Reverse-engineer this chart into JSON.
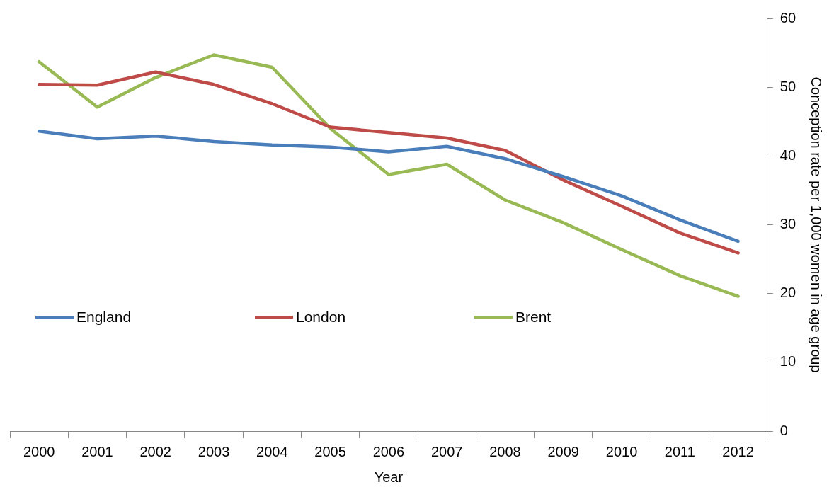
{
  "chart_data": {
    "type": "line",
    "xlabel": "Year",
    "y2label": "Conception rate per 1,000 women in age group",
    "categories": [
      "2000",
      "2001",
      "2002",
      "2003",
      "2004",
      "2005",
      "2006",
      "2007",
      "2008",
      "2009",
      "2010",
      "2011",
      "2012"
    ],
    "series": [
      {
        "name": "England",
        "color": "#4a7ebb",
        "axis": "y2",
        "values": [
          43.6,
          42.5,
          42.9,
          42.1,
          41.6,
          41.3,
          40.6,
          41.4,
          39.6,
          37.0,
          34.2,
          30.7,
          27.6
        ]
      },
      {
        "name": "London",
        "color": "#be4b48",
        "axis": "y2",
        "values": [
          50.4,
          50.3,
          52.2,
          50.4,
          47.6,
          44.2,
          43.4,
          42.6,
          40.8,
          36.5,
          32.7,
          28.8,
          25.9
        ]
      },
      {
        "name": "Brent",
        "color": "#98b954",
        "axis": "y2",
        "values": [
          53.7,
          47.1,
          51.4,
          54.7,
          52.9,
          44.0,
          37.3,
          38.8,
          33.6,
          30.3,
          26.4,
          22.6,
          19.6
        ]
      }
    ],
    "y2lim": [
      0,
      60
    ],
    "y2ticks": [
      0,
      10,
      20,
      30,
      40,
      50,
      60
    ],
    "grid": false,
    "legend": "center left",
    "marker": "none",
    "line_style": "solid"
  }
}
